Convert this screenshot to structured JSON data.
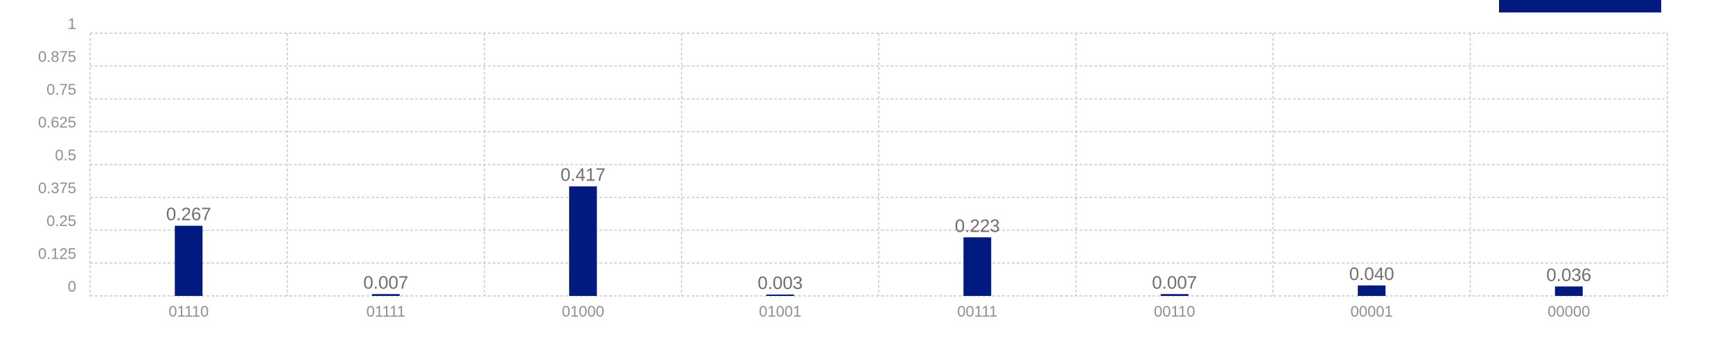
{
  "colors": {
    "bar": "#001a80",
    "legend": "#001a80",
    "grid": "#c8c8c8",
    "tick_text": "#8f8f8f",
    "value_text": "#6f6f6f"
  },
  "chart_data": {
    "type": "bar",
    "categories": [
      "01110",
      "01111",
      "01000",
      "01001",
      "00111",
      "00110",
      "00001",
      "00000"
    ],
    "values": [
      0.267,
      0.007,
      0.417,
      0.003,
      0.223,
      0.007,
      0.04,
      0.036
    ],
    "value_labels": [
      "0.267",
      "0.007",
      "0.417",
      "0.003",
      "0.223",
      "0.007",
      "0.040",
      "0.036"
    ],
    "ylim": [
      0,
      1
    ],
    "yticks": [
      0,
      0.125,
      0.25,
      0.375,
      0.5,
      0.625,
      0.75,
      0.875,
      1
    ],
    "ytick_labels": [
      "0",
      "0.125",
      "0.25",
      "0.375",
      "0.5",
      "0.625",
      "0.75",
      "0.875",
      "1"
    ],
    "grid": true,
    "grid_style": "dashed",
    "legend": "top-right",
    "title": "",
    "xlabel": "",
    "ylabel": ""
  }
}
